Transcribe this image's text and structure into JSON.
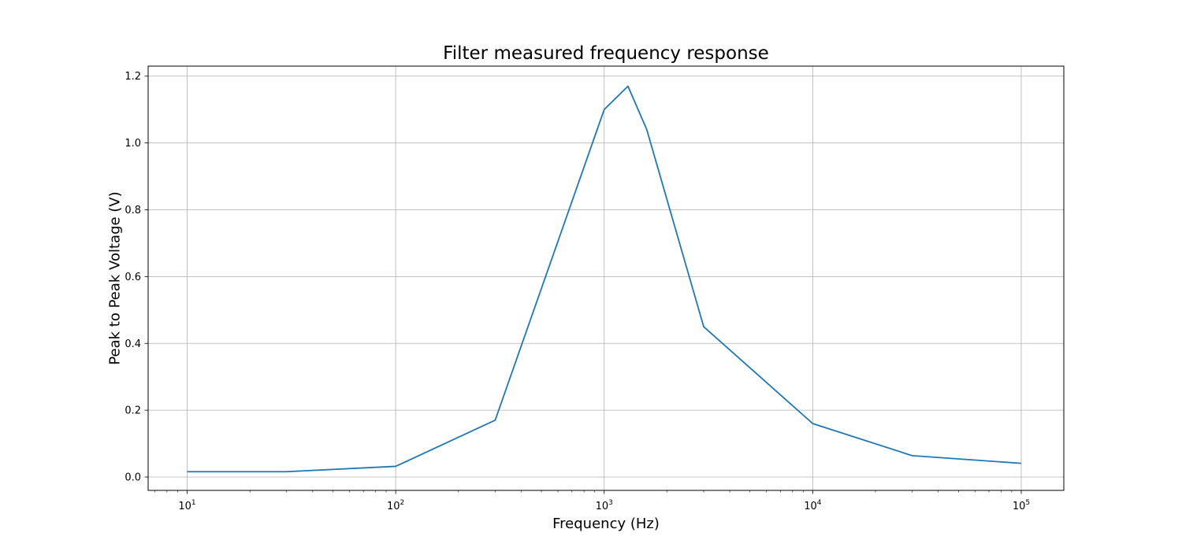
{
  "chart_data": {
    "type": "line",
    "title": "Filter measured frequency response",
    "xlabel": "Frequency (Hz)",
    "ylabel": "Peak to Peak Voltage (V)",
    "xscale": "log",
    "xlim": [
      6.5,
      160000
    ],
    "ylim": [
      -0.04,
      1.23
    ],
    "grid": true,
    "xticks": [
      {
        "value": 10,
        "base": "10",
        "exp": "1"
      },
      {
        "value": 100,
        "base": "10",
        "exp": "2"
      },
      {
        "value": 1000,
        "base": "10",
        "exp": "3"
      },
      {
        "value": 10000,
        "base": "10",
        "exp": "4"
      },
      {
        "value": 100000,
        "base": "10",
        "exp": "5"
      }
    ],
    "yticks": [
      {
        "value": 0.0,
        "label": "0.0"
      },
      {
        "value": 0.2,
        "label": "0.2"
      },
      {
        "value": 0.4,
        "label": "0.4"
      },
      {
        "value": 0.6,
        "label": "0.6"
      },
      {
        "value": 0.8,
        "label": "0.8"
      },
      {
        "value": 1.0,
        "label": "1.0"
      },
      {
        "value": 1.2,
        "label": "1.2"
      }
    ],
    "series": [
      {
        "color": "#1f77b4",
        "x": [
          10,
          30,
          100,
          300,
          1000,
          1300,
          1600,
          3000,
          10000,
          30000,
          100000
        ],
        "y": [
          0.016,
          0.016,
          0.032,
          0.17,
          1.1,
          1.17,
          1.04,
          0.45,
          0.16,
          0.064,
          0.041
        ]
      }
    ]
  }
}
